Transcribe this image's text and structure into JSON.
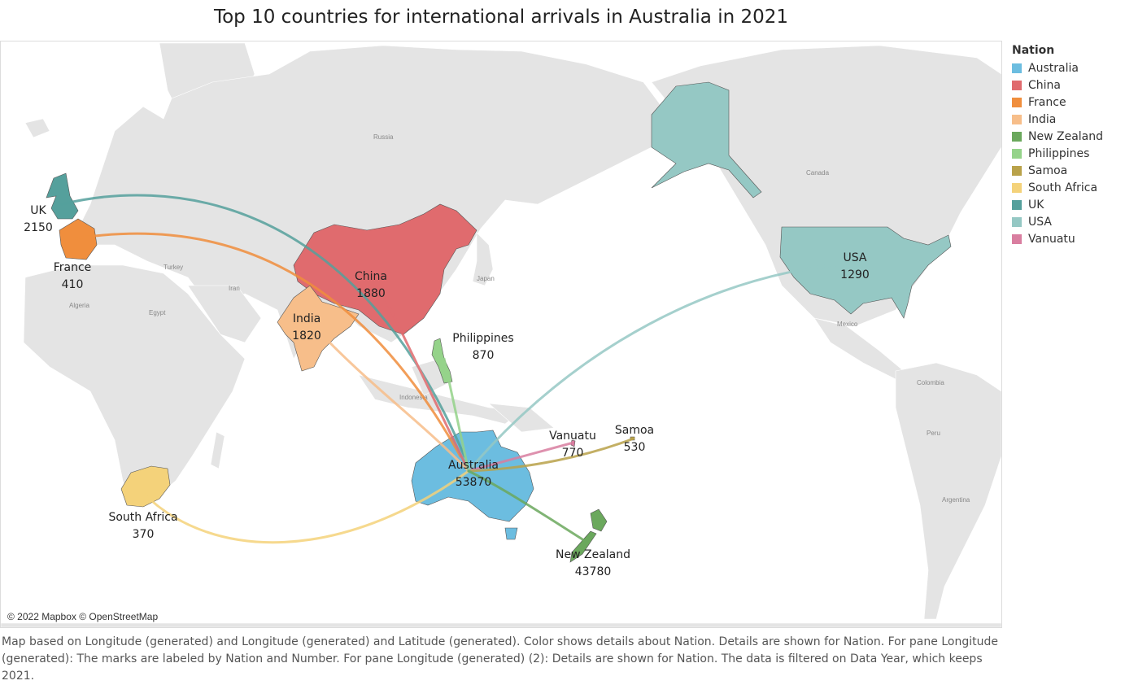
{
  "title": "Top 10 countries for international arrivals in Australia in 2021",
  "legend": {
    "title": "Nation",
    "items": [
      {
        "name": "Australia",
        "color": "#6cbde0"
      },
      {
        "name": "China",
        "color": "#e06b6e"
      },
      {
        "name": "France",
        "color": "#f08e3d"
      },
      {
        "name": "India",
        "color": "#f7be8a"
      },
      {
        "name": "New Zealand",
        "color": "#6ba85d"
      },
      {
        "name": "Philippines",
        "color": "#95d38a"
      },
      {
        "name": "Samoa",
        "color": "#b9a24a"
      },
      {
        "name": "South Africa",
        "color": "#f4d27a"
      },
      {
        "name": "UK",
        "color": "#55a09c"
      },
      {
        "name": "USA",
        "color": "#95c8c4"
      },
      {
        "name": "Vanuatu",
        "color": "#d97ea0"
      }
    ]
  },
  "nations": [
    {
      "name": "Australia",
      "number": "53870"
    },
    {
      "name": "New Zealand",
      "number": "43780"
    },
    {
      "name": "UK",
      "number": "2150"
    },
    {
      "name": "China",
      "number": "1880"
    },
    {
      "name": "India",
      "number": "1820"
    },
    {
      "name": "USA",
      "number": "1290"
    },
    {
      "name": "Philippines",
      "number": "870"
    },
    {
      "name": "Vanuatu",
      "number": "770"
    },
    {
      "name": "Samoa",
      "number": "530"
    },
    {
      "name": "France",
      "number": "410"
    },
    {
      "name": "South Africa",
      "number": "370"
    }
  ],
  "basemap_labels": [
    "Russia",
    "Canada",
    "Turkey",
    "Iran",
    "Egypt",
    "Algeria",
    "Japan",
    "Indonesia",
    "Mexico",
    "Colombia",
    "Peru",
    "Argentina"
  ],
  "attribution": "© 2022 Mapbox © OpenStreetMap",
  "caption": "Map based on Longitude (generated) and Longitude (generated) and Latitude (generated).  Color shows details about Nation.  Details are shown for Nation.  For pane Longitude (generated):  The marks are labeled by Nation and Number.  For pane Longitude (generated) (2):  Details are shown for Nation. The data is filtered on Data Year, which keeps 2021."
}
